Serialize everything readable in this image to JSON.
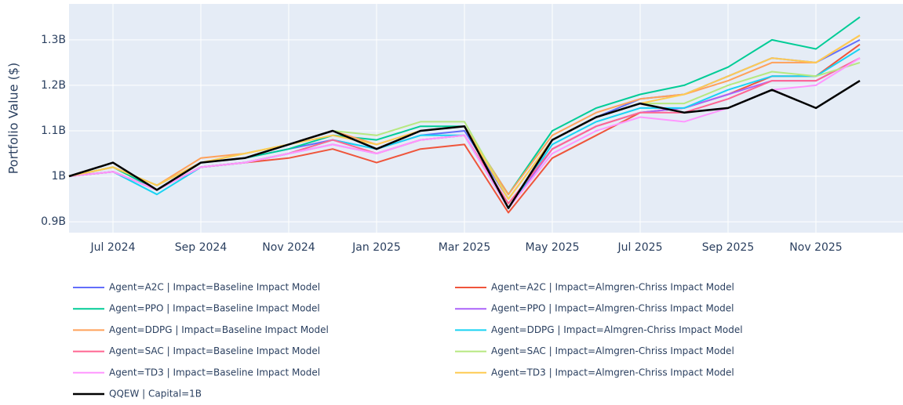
{
  "chart_data": {
    "type": "line",
    "y_label": "Portfolio Value ($)",
    "x": [
      "2024-06",
      "2024-07",
      "2024-08",
      "2024-09",
      "2024-10",
      "2024-11",
      "2024-12",
      "2025-01",
      "2025-02",
      "2025-03",
      "2025-04",
      "2025-05",
      "2025-06",
      "2025-07",
      "2025-08",
      "2025-09",
      "2025-10",
      "2025-11",
      "2025-12"
    ],
    "xlim": [
      "2024-06",
      "2025-12"
    ],
    "xticks": [
      {
        "value": "2024-07",
        "label": "Jul 2024"
      },
      {
        "value": "2024-09",
        "label": "Sep 2024"
      },
      {
        "value": "2024-11",
        "label": "Nov 2024"
      },
      {
        "value": "2025-01",
        "label": "Jan 2025"
      },
      {
        "value": "2025-03",
        "label": "Mar 2025"
      },
      {
        "value": "2025-05",
        "label": "May 2025"
      },
      {
        "value": "2025-07",
        "label": "Jul 2025"
      },
      {
        "value": "2025-09",
        "label": "Sep 2025"
      },
      {
        "value": "2025-11",
        "label": "Nov 2025"
      }
    ],
    "ylim": [
      876000000.0,
      1379000000.0
    ],
    "yticks": [
      {
        "value": 900000000.0,
        "label": "0.9B"
      },
      {
        "value": 1000000000.0,
        "label": "1B"
      },
      {
        "value": 1100000000.0,
        "label": "1.1B"
      },
      {
        "value": 1200000000.0,
        "label": "1.2B"
      },
      {
        "value": 1300000000.0,
        "label": "1.3B"
      }
    ],
    "grid": true,
    "legend": "bottom",
    "series": [
      {
        "name": "Agent=A2C | Impact=Baseline Impact Model",
        "color": "#636efa",
        "values": [
          1000000000.0,
          1020000000.0,
          980000000.0,
          1030000000.0,
          1040000000.0,
          1060000000.0,
          1080000000.0,
          1060000000.0,
          1090000000.0,
          1100000000.0,
          950000000.0,
          1080000000.0,
          1130000000.0,
          1170000000.0,
          1180000000.0,
          1220000000.0,
          1260000000.0,
          1250000000.0,
          1300000000.0
        ]
      },
      {
        "name": "Agent=A2C | Impact=Almgren-Chriss Impact Model",
        "color": "#ef553b",
        "values": [
          1000000000.0,
          1010000000.0,
          970000000.0,
          1020000000.0,
          1030000000.0,
          1040000000.0,
          1060000000.0,
          1030000000.0,
          1060000000.0,
          1070000000.0,
          920000000.0,
          1040000000.0,
          1090000000.0,
          1140000000.0,
          1150000000.0,
          1180000000.0,
          1220000000.0,
          1220000000.0,
          1290000000.0
        ]
      },
      {
        "name": "Agent=PPO | Impact=Baseline Impact Model",
        "color": "#00cc96",
        "values": [
          1000000000.0,
          1020000000.0,
          970000000.0,
          1030000000.0,
          1040000000.0,
          1060000000.0,
          1090000000.0,
          1080000000.0,
          1110000000.0,
          1110000000.0,
          960000000.0,
          1100000000.0,
          1150000000.0,
          1180000000.0,
          1200000000.0,
          1240000000.0,
          1300000000.0,
          1280000000.0,
          1350000000.0
        ]
      },
      {
        "name": "Agent=PPO | Impact=Almgren-Chriss Impact Model",
        "color": "#ab63fa",
        "values": [
          1000000000.0,
          1010000000.0,
          970000000.0,
          1020000000.0,
          1030000000.0,
          1050000000.0,
          1070000000.0,
          1050000000.0,
          1080000000.0,
          1090000000.0,
          930000000.0,
          1060000000.0,
          1110000000.0,
          1140000000.0,
          1150000000.0,
          1180000000.0,
          1210000000.0,
          1210000000.0,
          1260000000.0
        ]
      },
      {
        "name": "Agent=DDPG | Impact=Baseline Impact Model",
        "color": "#ffa15a",
        "values": [
          1000000000.0,
          1020000000.0,
          980000000.0,
          1040000000.0,
          1050000000.0,
          1070000000.0,
          1100000000.0,
          1070000000.0,
          1100000000.0,
          1110000000.0,
          960000000.0,
          1090000000.0,
          1140000000.0,
          1170000000.0,
          1180000000.0,
          1210000000.0,
          1250000000.0,
          1250000000.0,
          1310000000.0
        ]
      },
      {
        "name": "Agent=DDPG | Impact=Almgren-Chriss Impact Model",
        "color": "#19d3f3",
        "values": [
          1000000000.0,
          1010000000.0,
          960000000.0,
          1020000000.0,
          1030000000.0,
          1050000000.0,
          1080000000.0,
          1060000000.0,
          1090000000.0,
          1090000000.0,
          930000000.0,
          1070000000.0,
          1120000000.0,
          1150000000.0,
          1150000000.0,
          1190000000.0,
          1220000000.0,
          1220000000.0,
          1280000000.0
        ]
      },
      {
        "name": "Agent=SAC | Impact=Baseline Impact Model",
        "color": "#ff6692",
        "values": [
          1000000000.0,
          1010000000.0,
          970000000.0,
          1020000000.0,
          1030000000.0,
          1050000000.0,
          1080000000.0,
          1050000000.0,
          1080000000.0,
          1090000000.0,
          940000000.0,
          1060000000.0,
          1110000000.0,
          1140000000.0,
          1140000000.0,
          1170000000.0,
          1210000000.0,
          1210000000.0,
          1260000000.0
        ]
      },
      {
        "name": "Agent=SAC | Impact=Almgren-Chriss Impact Model",
        "color": "#b6e880",
        "values": [
          1000000000.0,
          1020000000.0,
          980000000.0,
          1030000000.0,
          1050000000.0,
          1070000000.0,
          1100000000.0,
          1090000000.0,
          1120000000.0,
          1120000000.0,
          950000000.0,
          1080000000.0,
          1130000000.0,
          1160000000.0,
          1160000000.0,
          1200000000.0,
          1230000000.0,
          1220000000.0,
          1250000000.0
        ]
      },
      {
        "name": "Agent=TD3 | Impact=Baseline Impact Model",
        "color": "#ff97ff",
        "values": [
          1000000000.0,
          1010000000.0,
          970000000.0,
          1020000000.0,
          1030000000.0,
          1050000000.0,
          1070000000.0,
          1050000000.0,
          1080000000.0,
          1090000000.0,
          930000000.0,
          1050000000.0,
          1100000000.0,
          1130000000.0,
          1120000000.0,
          1150000000.0,
          1190000000.0,
          1200000000.0,
          1260000000.0
        ]
      },
      {
        "name": "Agent=TD3 | Impact=Almgren-Chriss Impact Model",
        "color": "#fecb52",
        "values": [
          1000000000.0,
          1020000000.0,
          980000000.0,
          1030000000.0,
          1050000000.0,
          1070000000.0,
          1090000000.0,
          1070000000.0,
          1100000000.0,
          1110000000.0,
          950000000.0,
          1080000000.0,
          1130000000.0,
          1160000000.0,
          1180000000.0,
          1220000000.0,
          1260000000.0,
          1250000000.0,
          1310000000.0
        ]
      },
      {
        "name": "QQEW | Capital=1B",
        "color": "#000000",
        "values": [
          1000000000.0,
          1030000000.0,
          970000000.0,
          1030000000.0,
          1040000000.0,
          1070000000.0,
          1100000000.0,
          1060000000.0,
          1100000000.0,
          1110000000.0,
          930000000.0,
          1080000000.0,
          1130000000.0,
          1160000000.0,
          1140000000.0,
          1150000000.0,
          1190000000.0,
          1150000000.0,
          1210000000.0
        ]
      }
    ]
  }
}
